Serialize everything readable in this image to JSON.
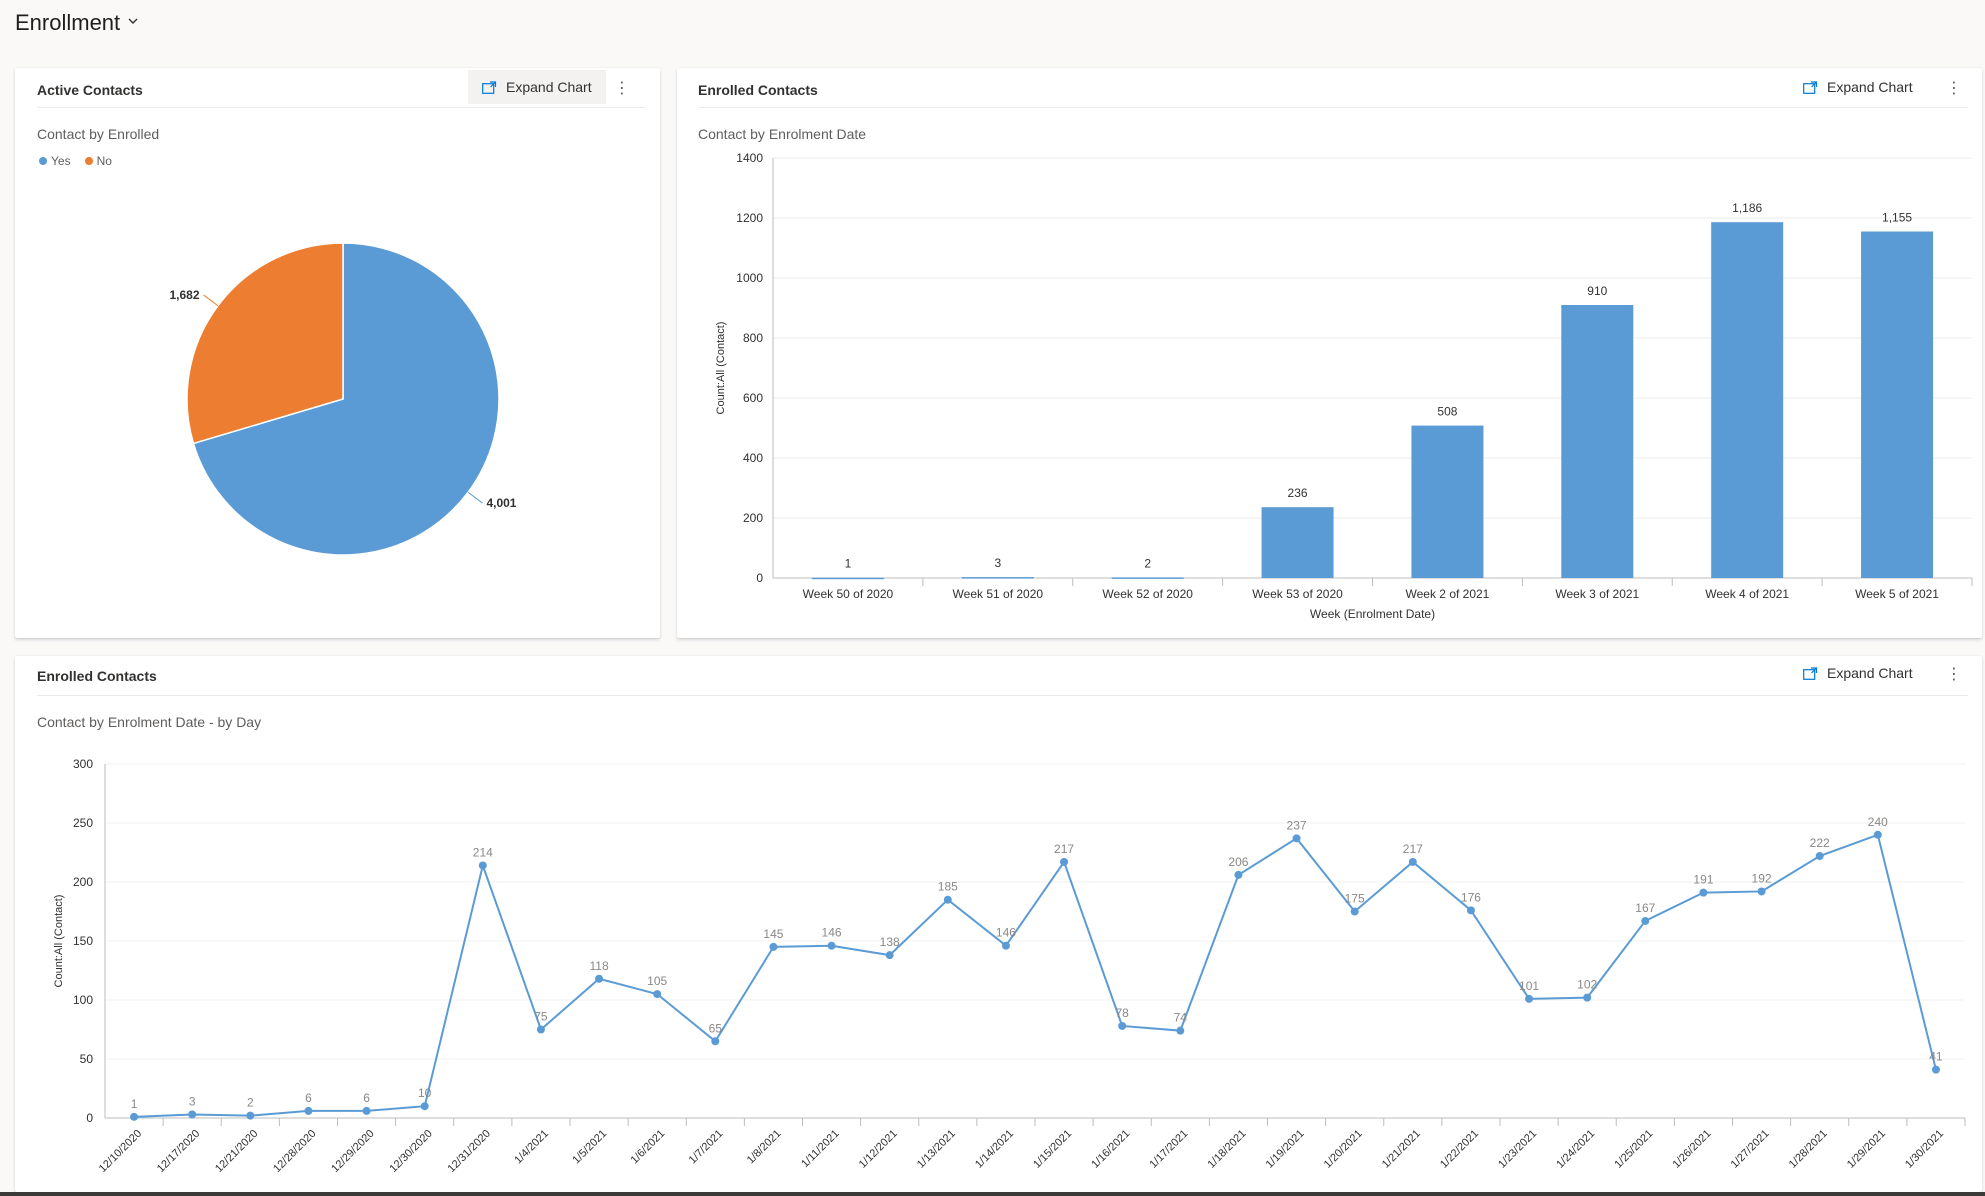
{
  "header": {
    "title": "Enrollment"
  },
  "colors": {
    "blue": "#5b9bd5",
    "orange": "#ed7d31"
  },
  "cards": {
    "active": {
      "title": "Active Contacts",
      "expand_label": "Expand Chart",
      "subtitle": "Contact by Enrolled"
    },
    "enrolled_week": {
      "title": "Enrolled Contacts",
      "expand_label": "Expand Chart",
      "subtitle": "Contact by Enrolment Date"
    },
    "enrolled_day": {
      "title": "Enrolled Contacts",
      "expand_label": "Expand Chart",
      "subtitle": "Contact by Enrolment Date - by Day"
    }
  },
  "chart_data": [
    {
      "type": "pie",
      "title": "Contact by Enrolled",
      "legend": [
        "Yes",
        "No"
      ],
      "legend_position": "top-left",
      "slices": [
        {
          "label": "Yes",
          "value": 4001,
          "display": "4,001",
          "color": "#5b9bd5"
        },
        {
          "label": "No",
          "value": 1682,
          "display": "1,682",
          "color": "#ed7d31"
        }
      ]
    },
    {
      "type": "bar",
      "title": "Contact by Enrolment Date",
      "xlabel": "Week (Enrolment Date)",
      "ylabel": "Count:All (Contact)",
      "ylim": [
        0,
        1400
      ],
      "yticks": [
        0,
        200,
        400,
        600,
        800,
        1000,
        1200,
        1400
      ],
      "grid": true,
      "categories": [
        "Week 50 of 2020",
        "Week 51 of 2020",
        "Week 52 of 2020",
        "Week 53 of 2020",
        "Week 2 of 2021",
        "Week 3 of 2021",
        "Week 4 of 2021",
        "Week 5 of 2021"
      ],
      "values": [
        1,
        3,
        2,
        236,
        508,
        910,
        1186,
        1155
      ],
      "labels": [
        "1",
        "3",
        "2",
        "236",
        "508",
        "910",
        "1,186",
        "1,155"
      ]
    },
    {
      "type": "line",
      "title": "Contact by Enrolment Date - by Day",
      "xlabel": "",
      "ylabel": "Count:All (Contact)",
      "ylim": [
        0,
        300
      ],
      "yticks": [
        0,
        50,
        100,
        150,
        200,
        250,
        300
      ],
      "grid": true,
      "categories": [
        "12/10/2020",
        "12/17/2020",
        "12/21/2020",
        "12/28/2020",
        "12/29/2020",
        "12/30/2020",
        "12/31/2020",
        "1/4/2021",
        "1/5/2021",
        "1/6/2021",
        "1/7/2021",
        "1/8/2021",
        "1/11/2021",
        "1/12/2021",
        "1/13/2021",
        "1/14/2021",
        "1/15/2021",
        "1/16/2021",
        "1/17/2021",
        "1/18/2021",
        "1/19/2021",
        "1/20/2021",
        "1/21/2021",
        "1/22/2021",
        "1/23/2021",
        "1/24/2021",
        "1/25/2021",
        "1/26/2021",
        "1/27/2021",
        "1/28/2021",
        "1/29/2021",
        "1/30/2021"
      ],
      "values": [
        1,
        3,
        2,
        6,
        6,
        10,
        214,
        75,
        118,
        105,
        65,
        145,
        146,
        138,
        185,
        146,
        217,
        78,
        74,
        206,
        237,
        175,
        217,
        176,
        101,
        102,
        167,
        191,
        192,
        222,
        240,
        41
      ]
    }
  ]
}
